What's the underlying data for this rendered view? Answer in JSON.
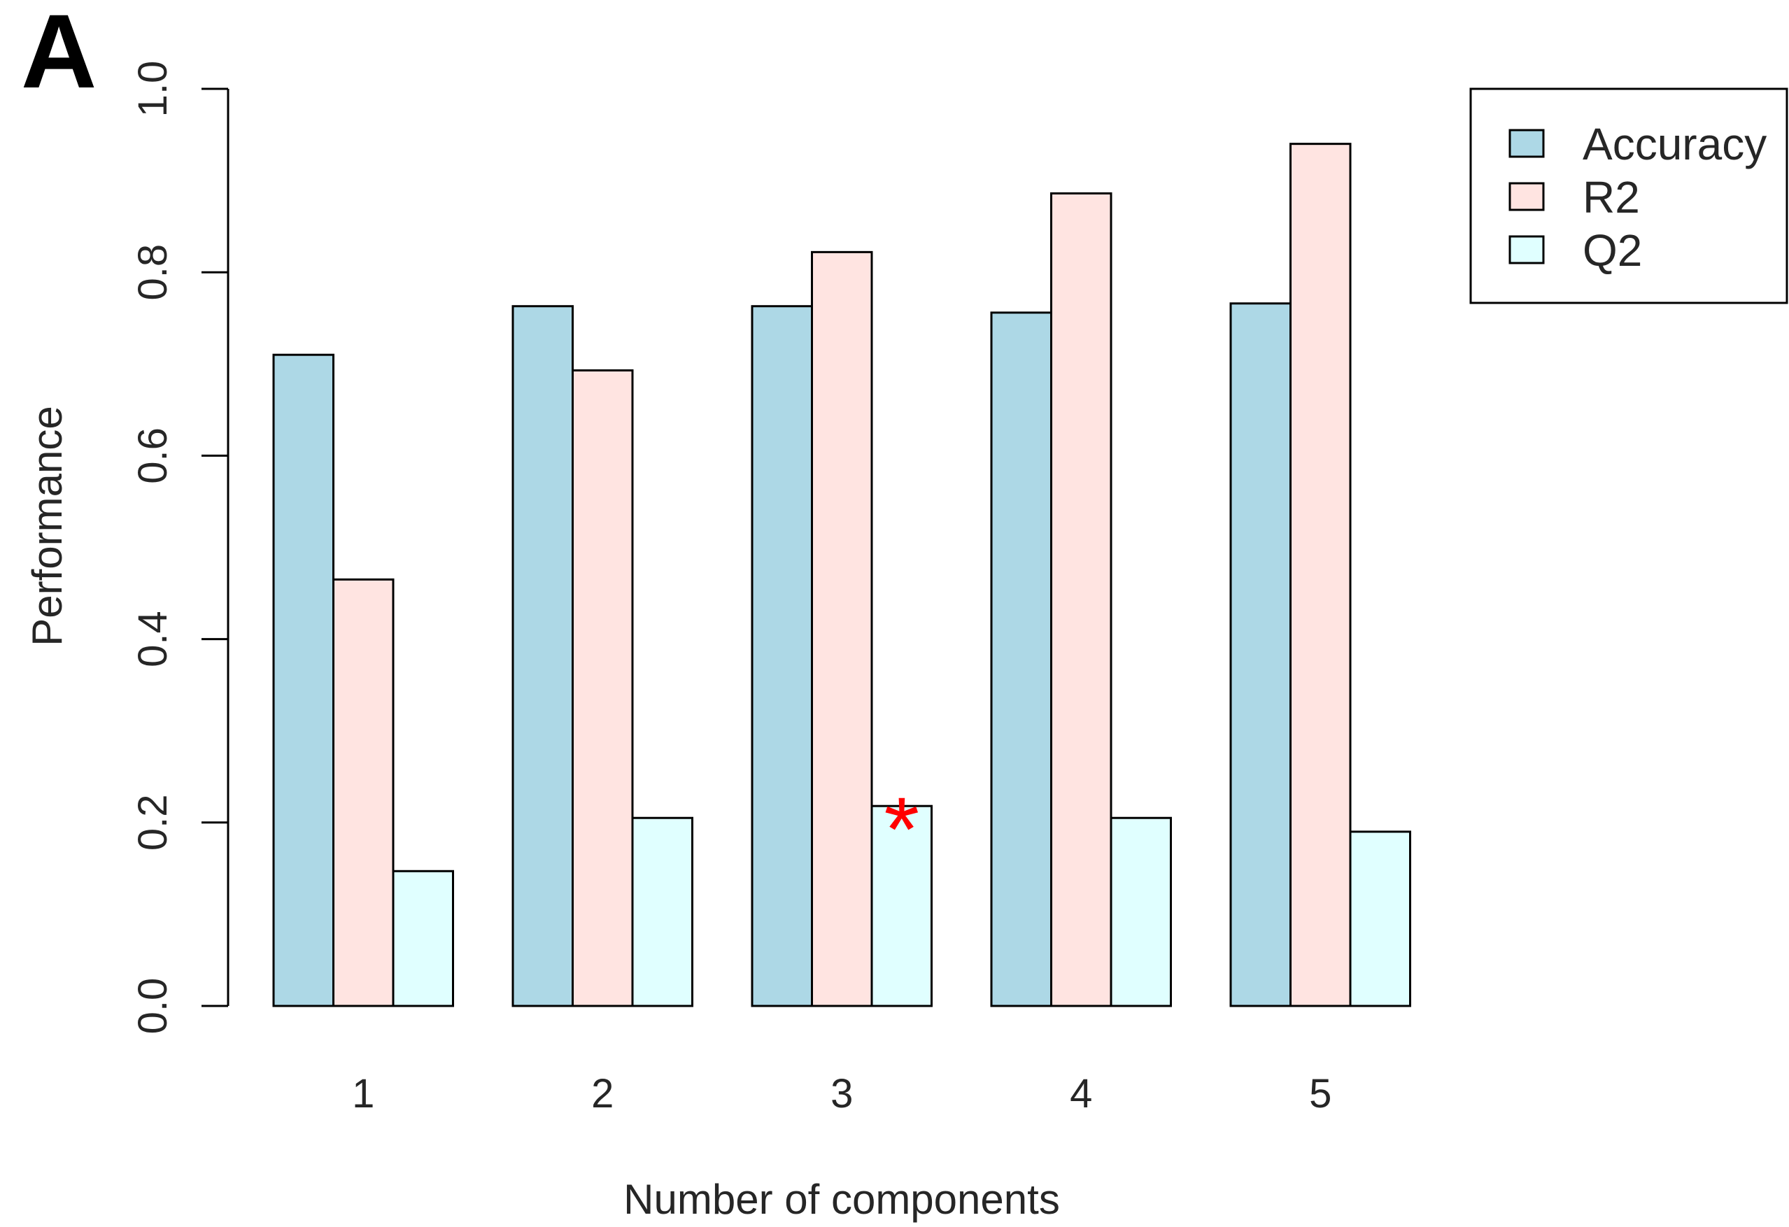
{
  "panel_label": "A",
  "colors": {
    "Accuracy": "#add8e6",
    "R2": "#ffe4e1",
    "Q2": "#e0ffff",
    "marker": "#ff0000",
    "stroke": "#000000"
  },
  "marker": {
    "symbol": "*",
    "category": "3",
    "series": "Q2"
  },
  "chart_data": {
    "type": "bar",
    "categories": [
      "1",
      "2",
      "3",
      "4",
      "5"
    ],
    "series": [
      {
        "name": "Accuracy",
        "values": [
          0.71,
          0.763,
          0.763,
          0.756,
          0.766
        ]
      },
      {
        "name": "R2",
        "values": [
          0.465,
          0.693,
          0.822,
          0.886,
          0.94
        ]
      },
      {
        "name": "Q2",
        "values": [
          0.147,
          0.205,
          0.218,
          0.205,
          0.19
        ]
      }
    ],
    "title": "",
    "xlabel": "Number of components",
    "ylabel": "Performance",
    "ylim": [
      0,
      1.0
    ],
    "yticks": [
      "0.0",
      "0.2",
      "0.4",
      "0.6",
      "0.8",
      "1.0"
    ],
    "grid": false,
    "legend_position": "top-right"
  }
}
